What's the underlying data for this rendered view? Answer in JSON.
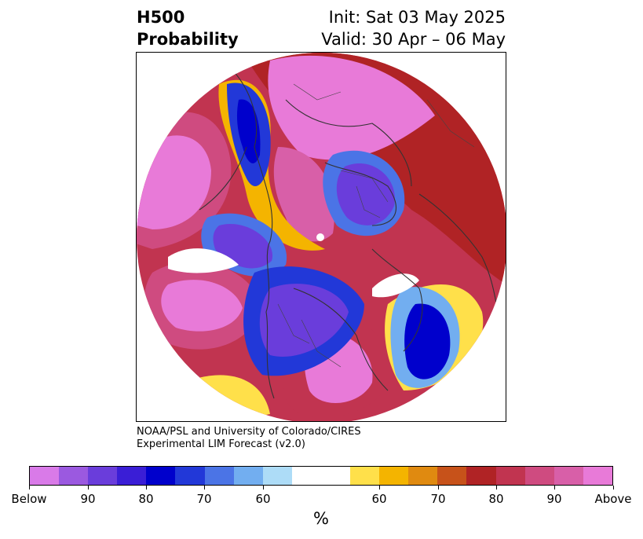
{
  "header": {
    "left_line1": "H500",
    "left_line2": "Probability",
    "right_line1": "Init: Sat 03 May 2025",
    "right_line2": "Valid: 30 Apr – 06 May"
  },
  "credit": {
    "line1": "NOAA/PSL and University of Colorado/CIRES",
    "line2": "Experimental LIM Forecast (v2.0)"
  },
  "colorbar": {
    "colors": [
      "#d97ae8",
      "#9b59e0",
      "#6a3ddb",
      "#3a1ed6",
      "#0000cc",
      "#2238d8",
      "#4b74e6",
      "#72aef0",
      "#addcf7",
      "#ffffff",
      "#ffffff",
      "#ffe04a",
      "#f4b400",
      "#e08a10",
      "#c7521a",
      "#b02325",
      "#c13450",
      "#cf4b80",
      "#d85fa8",
      "#e87ad8"
    ],
    "tick_labels": [
      "Below",
      "90",
      "80",
      "70",
      "60",
      "60",
      "70",
      "80",
      "90",
      "Above"
    ],
    "units": "%"
  },
  "map": {
    "projection": "north-polar-stereographic",
    "features": [
      "coastlines",
      "country-borders",
      "state-borders"
    ],
    "palette_below": [
      "#0000cc",
      "#3a1ed6",
      "#6a3ddb",
      "#4b74e6",
      "#72aef0",
      "#addcf7"
    ],
    "palette_above": [
      "#ffe04a",
      "#f4b400",
      "#e08a10",
      "#c7521a",
      "#b02325",
      "#cf4b80",
      "#e87ad8"
    ]
  }
}
